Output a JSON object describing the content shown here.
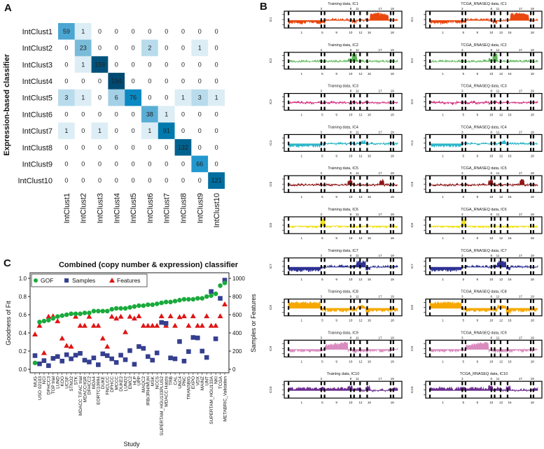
{
  "panels": {
    "a": "A",
    "b": "B",
    "c": "C"
  },
  "chart_data": [
    {
      "type": "heatmap",
      "panel": "A",
      "ylabel": "Expression-based classifier",
      "xlabel": "Combined (copy number & expression) classifier",
      "rows": [
        "IntClust1",
        "IntClust2",
        "IntClust3",
        "IntClust4",
        "IntClust5",
        "IntClust6",
        "IntClust7",
        "IntClust8",
        "IntClust9",
        "IntClust10"
      ],
      "cols": [
        "IntClust1",
        "IntClust2",
        "IntClust3",
        "IntClust4",
        "IntClust5",
        "IntClust6",
        "IntClust7",
        "IntClust8",
        "IntClust9",
        "IntClust10"
      ],
      "values": [
        [
          59,
          1,
          0,
          0,
          0,
          0,
          0,
          0,
          0,
          0
        ],
        [
          0,
          23,
          0,
          0,
          0,
          2,
          0,
          0,
          1,
          0
        ],
        [
          0,
          1,
          159,
          0,
          0,
          0,
          0,
          0,
          0,
          0
        ],
        [
          0,
          0,
          0,
          194,
          0,
          0,
          0,
          0,
          0,
          0
        ],
        [
          3,
          1,
          0,
          6,
          76,
          0,
          0,
          1,
          3,
          1
        ],
        [
          0,
          0,
          0,
          0,
          0,
          38,
          1,
          0,
          0,
          0
        ],
        [
          1,
          0,
          1,
          0,
          0,
          1,
          91,
          0,
          0,
          0
        ],
        [
          0,
          0,
          0,
          0,
          0,
          0,
          0,
          132,
          0,
          0
        ],
        [
          0,
          0,
          0,
          0,
          0,
          0,
          0,
          0,
          66,
          0
        ],
        [
          0,
          0,
          0,
          0,
          0,
          0,
          0,
          0,
          0,
          121
        ]
      ],
      "color_low": "#ffffff",
      "color_high": "#004a72"
    },
    {
      "type": "line",
      "panel": "B",
      "datasets": [
        "Training data",
        "TCGA_RNASEQ data"
      ],
      "titles_left": [
        "Training data, IC1",
        "Training data, IC2",
        "Training data, IC3",
        "Training data, IC4",
        "Training data, IC5",
        "Training data, IC6",
        "Training data, IC7",
        "Training data, IC8",
        "Training data, IC9",
        "Training data, IC10"
      ],
      "titles_right": [
        "TCGA_RNASEQ data, IC1",
        "TCGA_RNASEQ data, IC2",
        "TCGA_RNASEQ data, IC3",
        "TCGA_RNASEQ data, IC4",
        "TCGA_RNASEQ data, IC5",
        "TCGA_RNASEQ data, IC6",
        "TCGA_RNASEQ data, IC7",
        "TCGA_RNASEQ data, IC8",
        "TCGA_RNASEQ data, IC9",
        "TCGA_RNASEQ data, IC10"
      ],
      "ylabels": [
        "IC1",
        "IC2",
        "IC3",
        "IC4",
        "IC5",
        "IC6",
        "IC7",
        "IC8",
        "IC9",
        "IC10"
      ],
      "chrom_top": [
        "3",
        "8",
        "11",
        "17",
        "19"
      ],
      "chrom_bottom": [
        "1",
        "5",
        "9",
        "10",
        "12",
        "16",
        "18"
      ],
      "colors": [
        "#e9470e",
        "#5fb85a",
        "#d42a7c",
        "#2bb5c9",
        "#8e1616",
        "#f2e21f",
        "#2e3192",
        "#f6a800",
        "#d98bbf",
        "#6b2c8f"
      ],
      "levels": [
        [
          -0.3,
          -0.3,
          -0.35,
          -0.3,
          -0.2,
          -0.2,
          -0.3,
          -0.25,
          0.1,
          0.15,
          0.1,
          0.1,
          0.1,
          0.0,
          -0.25,
          0.0,
          0.0,
          0.1,
          0.8,
          0.95,
          0.85,
          0.7,
          0.0,
          0.05
        ],
        [
          0.05,
          0.05,
          0.05,
          0.05,
          0.05,
          0.08,
          0.05,
          0.05,
          0.05,
          0.05,
          0.05,
          0.05,
          0.1,
          0.3,
          0.95,
          0.05,
          0.05,
          0.05,
          0.05,
          0.05,
          0.05,
          0.05,
          0.05,
          0.05
        ],
        [
          0.05,
          0.0,
          0.05,
          -0.05,
          0.0,
          -0.1,
          0.05,
          -0.05,
          0.0,
          0.05,
          -0.05,
          0.0,
          0.05,
          -0.1,
          0.1,
          -0.05,
          0.0,
          0.05,
          0.0,
          -0.05,
          0.0,
          0.05,
          0.0,
          0.05
        ],
        [
          -0.3,
          -0.3,
          -0.3,
          -0.3,
          -0.3,
          -0.3,
          -0.3,
          -0.1,
          0.05,
          0.05,
          0.0,
          0.05,
          0.0,
          0.05,
          0.0,
          0.1,
          0.35,
          0.0,
          0.05,
          0.0,
          0.05,
          0.0,
          0.05,
          0.0
        ],
        [
          0.0,
          0.0,
          0.05,
          0.0,
          0.0,
          0.0,
          0.05,
          0.0,
          0.0,
          0.0,
          0.0,
          0.05,
          0.0,
          0.55,
          0.0,
          0.0,
          0.0,
          0.0,
          0.0,
          0.05,
          0.6,
          0.0,
          0.0,
          0.0
        ],
        [
          -0.1,
          -0.1,
          -0.1,
          -0.1,
          -0.1,
          -0.1,
          -0.1,
          0.9,
          -0.1,
          -0.1,
          -0.1,
          -0.1,
          -0.1,
          -0.1,
          -0.1,
          -0.1,
          -0.1,
          -0.1,
          -0.1,
          -0.1,
          -0.1,
          -0.1,
          -0.1,
          -0.1
        ],
        [
          -0.4,
          -0.45,
          -0.5,
          -0.4,
          -0.45,
          -0.4,
          -0.4,
          0.0,
          0.1,
          0.15,
          0.1,
          0.15,
          0.1,
          0.0,
          0.2,
          0.7,
          0.7,
          -0.3,
          0.1,
          0.05,
          0.05,
          0.1,
          0.0,
          0.1
        ],
        [
          0.7,
          0.75,
          0.7,
          0.75,
          0.7,
          0.7,
          0.7,
          -0.2,
          -0.3,
          -0.3,
          -0.3,
          -0.3,
          -0.35,
          -0.2,
          -0.3,
          0.25,
          0.3,
          -0.55,
          -0.3,
          -0.3,
          -0.35,
          -0.3,
          -0.3,
          -0.25
        ],
        [
          -0.2,
          -0.2,
          -0.2,
          -0.2,
          -0.2,
          -0.2,
          -0.2,
          -0.1,
          0.5,
          0.6,
          0.7,
          0.8,
          0.85,
          -0.2,
          -0.3,
          -0.3,
          -0.2,
          -0.3,
          -0.2,
          -0.1,
          -0.2,
          -0.1,
          -0.2,
          0.0
        ],
        [
          0.3,
          0.2,
          0.35,
          0.25,
          0.3,
          0.2,
          0.3,
          0.35,
          0.2,
          0.3,
          0.25,
          0.3,
          0.2,
          0.55,
          0.1,
          0.35,
          0.0,
          0.5,
          0.0,
          0.0,
          0.1,
          0.0,
          0.15,
          0.3
        ]
      ]
    },
    {
      "type": "scatter",
      "panel": "C",
      "xlabel": "Study",
      "ylabel": "Goodness of Fit",
      "ylabel_right": "Samples or Features",
      "ylim": [
        0,
        1
      ],
      "ylim_right": [
        0,
        1000
      ],
      "yticks": [
        "0.0",
        "0.2",
        "0.4",
        "0.6",
        "0.8",
        "1.0"
      ],
      "yticks_right": [
        "0",
        "200",
        "400",
        "600",
        "800",
        "1000"
      ],
      "legend": [
        "GOF",
        "Samples",
        "Features"
      ],
      "legend_position": "top-left",
      "colors": {
        "GOF": "#1aaa3c",
        "Samples": "#353f8f",
        "Features": "#e01414"
      },
      "categories": [
        "MUG",
        "USO 02103",
        "NCI",
        "DFHCC3",
        "TOP trial",
        "LUND",
        "KOO",
        "UCSF",
        "STNO2",
        "STK",
        "MDACC T/FAC trial",
        "MDACC/IGR",
        "DFHCC2",
        "MDA4",
        "EORTC10994",
        "DUKE",
        "FNCLCC",
        "DFHCC",
        "MCCC",
        "DUKE2",
        "LUND2",
        "EMC2",
        "HLP",
        "UPP",
        "MAQC2",
        "IRB/JRH/MUH",
        "MSK",
        "NCCS",
        "SUPERTAM_HGU133PLUS2",
        "MDACC Hatzis",
        "TRB",
        "CAL",
        "UNC4",
        "PNC",
        "TRANSBIG",
        "EXPO",
        "VDX",
        "MAINZ",
        "UNT",
        "SUPERTAM_HGU133A",
        "NKI",
        "TCGA",
        "METABRIC_Validation"
      ],
      "series": [
        {
          "name": "GOF",
          "axis": "left",
          "values": [
            0.07,
            0.52,
            0.53,
            0.54,
            0.56,
            0.58,
            0.59,
            0.6,
            0.61,
            0.61,
            0.61,
            0.62,
            0.62,
            0.64,
            0.64,
            0.64,
            0.64,
            0.66,
            0.67,
            0.67,
            0.67,
            0.68,
            0.69,
            0.7,
            0.7,
            0.71,
            0.71,
            0.72,
            0.73,
            0.74,
            0.74,
            0.75,
            0.76,
            0.77,
            0.77,
            0.77,
            0.78,
            0.78,
            0.8,
            0.81,
            0.83,
            0.92,
            0.95
          ]
        },
        {
          "name": "Samples",
          "axis": "right",
          "values": [
            150,
            60,
            95,
            40,
            120,
            140,
            90,
            160,
            115,
            155,
            175,
            100,
            80,
            125,
            50,
            170,
            150,
            115,
            75,
            155,
            105,
            205,
            55,
            250,
            230,
            140,
            100,
            180,
            515,
            505,
            125,
            115,
            305,
            90,
            195,
            350,
            345,
            200,
            130,
            855,
            335,
            780,
            980
          ]
        },
        {
          "name": "Features",
          "axis": "right",
          "values": [
            385,
            480,
            180,
            580,
            585,
            530,
            340,
            260,
            250,
            580,
            480,
            480,
            580,
            480,
            480,
            340,
            250,
            580,
            560,
            580,
            410,
            580,
            560,
            585,
            480,
            480,
            480,
            480,
            585,
            480,
            585,
            480,
            575,
            585,
            480,
            585,
            480,
            480,
            585,
            480,
            480,
            585,
            715
          ]
        }
      ]
    }
  ]
}
